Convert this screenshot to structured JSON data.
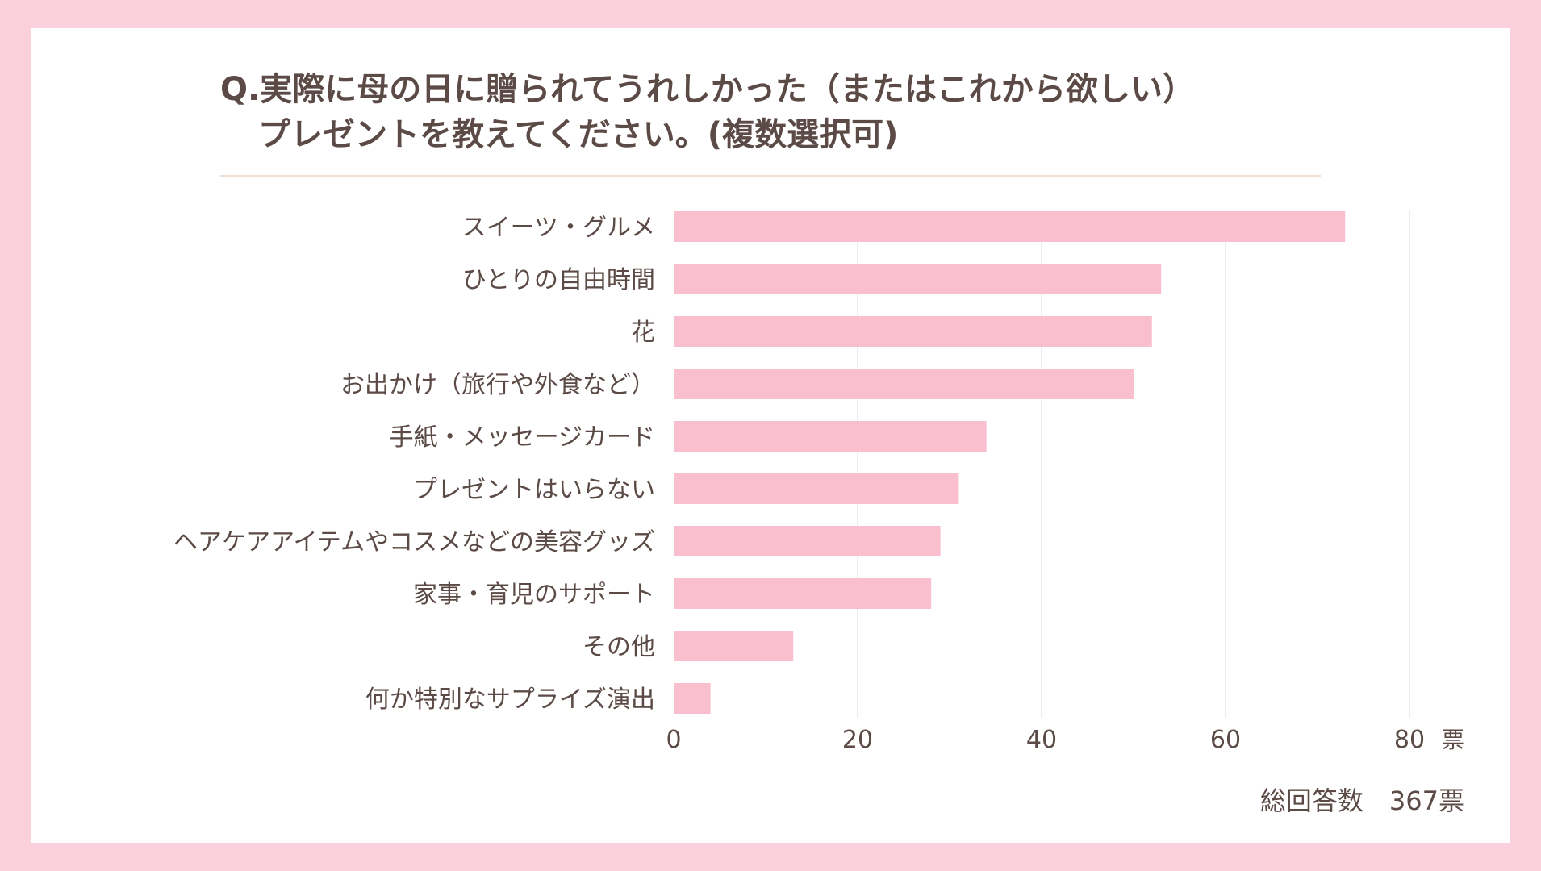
{
  "colors": {
    "page_border": "#fbd0dd",
    "bar": "#f9bfcf",
    "text": "#5b4a45",
    "grid": "#e6e6e6"
  },
  "title": {
    "line1": "Q.実際に母の日に贈られてうれしかった（またはこれから欲しい）",
    "line2": "プレゼントを教えてください。(複数選択可)"
  },
  "chart_data": {
    "type": "bar",
    "orientation": "horizontal",
    "categories": [
      "スイーツ・グルメ",
      "ひとりの自由時間",
      "花",
      "お出かけ（旅行や外食など）",
      "手紙・メッセージカード",
      "プレゼントはいらない",
      "ヘアケアアイテムやコスメなどの美容グッズ",
      "家事・育児のサポート",
      "その他",
      "何か特別なサプライズ演出"
    ],
    "values": [
      73,
      53,
      52,
      50,
      34,
      31,
      29,
      28,
      13,
      4
    ],
    "xlim": [
      0,
      80
    ],
    "xticks": [
      "0",
      "20",
      "40",
      "60",
      "80"
    ],
    "xunit": "票",
    "grid": true
  },
  "footer": {
    "total_label": "総回答数　367票"
  }
}
